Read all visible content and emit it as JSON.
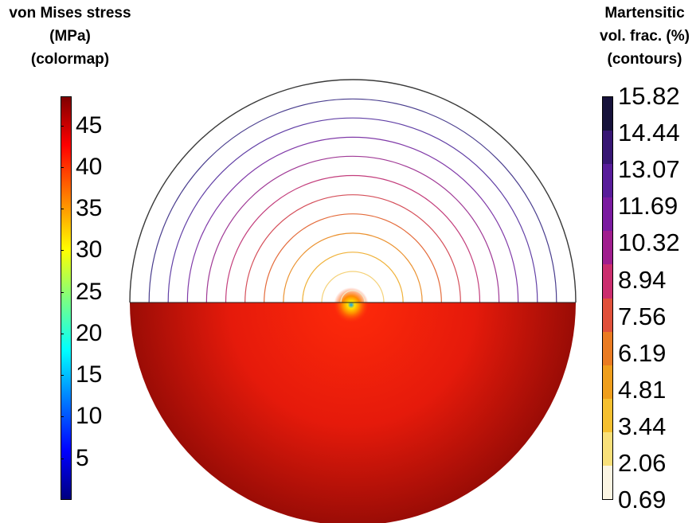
{
  "titles": {
    "left": [
      "von Mises stress",
      "(MPa)",
      "(colormap)"
    ],
    "right": [
      "Martensitic",
      "vol. frac. (%)",
      "(contours)"
    ]
  },
  "stress_scale": {
    "range": [
      0,
      48.5
    ],
    "ticks": [
      "5",
      "10",
      "15",
      "20",
      "25",
      "30",
      "35",
      "40",
      "45"
    ],
    "tick_values": [
      5,
      10,
      15,
      20,
      25,
      30,
      35,
      40,
      45
    ]
  },
  "fraction_scale": {
    "range": [
      0.69,
      15.82
    ],
    "ticks": [
      "0.69",
      "2.06",
      "3.44",
      "4.81",
      "6.19",
      "7.56",
      "8.94",
      "10.32",
      "11.69",
      "13.07",
      "14.44",
      "15.82"
    ],
    "tick_values": [
      0.69,
      2.06,
      3.44,
      4.81,
      6.19,
      7.56,
      8.94,
      10.32,
      11.69,
      13.07,
      14.44,
      15.82
    ],
    "segment_colors": [
      "#fbf5e3",
      "#f8e07a",
      "#f5c030",
      "#ef9e1c",
      "#ea7b22",
      "#e0503a",
      "#cb2d6e",
      "#a01d8e",
      "#7a1aa0",
      "#581c9a",
      "#371673",
      "#16123a"
    ]
  },
  "contours": {
    "levels": [
      0.69,
      2.06,
      3.44,
      4.81,
      6.19,
      7.56,
      8.94,
      10.32,
      11.69,
      13.07,
      14.44,
      15.82
    ],
    "colors": [
      "#f2e8c8",
      "#f5d27a",
      "#f0b23a",
      "#eb9230",
      "#e46c3c",
      "#d54f5a",
      "#c33e7c",
      "#a03a96",
      "#803aa8",
      "#6240a6",
      "#4a3e8e",
      "#3a3a3a"
    ]
  },
  "colors": {
    "stress_fill": "#e8190b",
    "stress_edge": "#8a0805"
  }
}
